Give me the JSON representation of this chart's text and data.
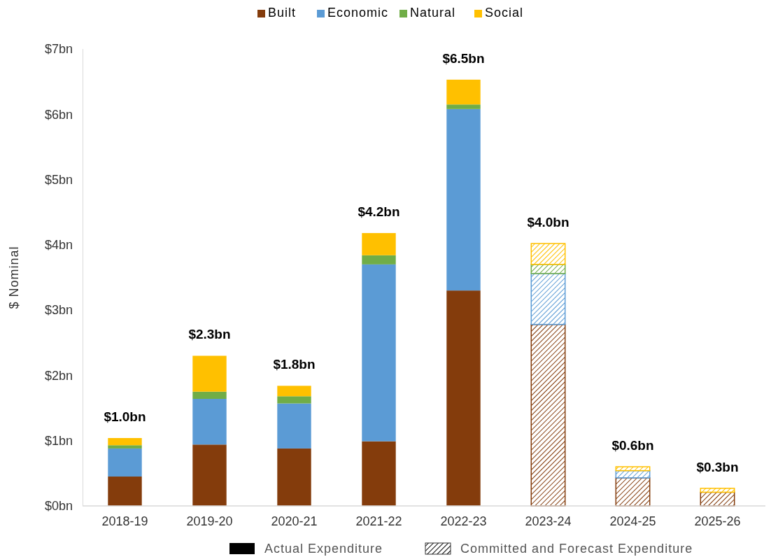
{
  "chart_data": {
    "type": "bar",
    "stacked": true,
    "ylabel": "$ Nominal",
    "legend": "top",
    "categories": [
      "2018-19",
      "2019-20",
      "2020-21",
      "2021-22",
      "2022-23",
      "2023-24",
      "2024-25",
      "2025-26"
    ],
    "ylim": [
      0,
      7
    ],
    "yticks": [
      {
        "value": 0,
        "label": "$0bn"
      },
      {
        "value": 1,
        "label": "$1bn"
      },
      {
        "value": 2,
        "label": "$2bn"
      },
      {
        "value": 3,
        "label": "$3bn"
      },
      {
        "value": 4,
        "label": "$4bn"
      },
      {
        "value": 5,
        "label": "$5bn"
      },
      {
        "value": 6,
        "label": "$6bn"
      },
      {
        "value": 7,
        "label": "$7bn"
      }
    ],
    "series": [
      {
        "type": "bar",
        "name": "Built",
        "color": "#843c0c",
        "values": [
          0.45,
          0.94,
          0.88,
          0.99,
          3.3,
          null,
          null,
          null
        ]
      },
      {
        "type": "bar",
        "name": "Economic",
        "color": "#5b9bd5",
        "values": [
          0.43,
          0.7,
          0.69,
          2.71,
          2.78,
          null,
          null,
          null
        ]
      },
      {
        "type": "bar",
        "name": "Natural",
        "color": "#70ad47",
        "values": [
          0.05,
          0.11,
          0.11,
          0.14,
          0.07,
          null,
          null,
          null
        ]
      },
      {
        "type": "bar",
        "name": "Social",
        "color": "#ffc000",
        "values": [
          0.11,
          0.55,
          0.16,
          0.34,
          0.38,
          null,
          null,
          null
        ]
      },
      {
        "type": "bar",
        "color": "#843c0c",
        "values": [
          null,
          null,
          null,
          null,
          null,
          2.78,
          0.43,
          0.21
        ]
      },
      {
        "type": "bar",
        "color": "#5b9bd5",
        "values": [
          null,
          null,
          null,
          null,
          null,
          0.78,
          0.11,
          null
        ]
      },
      {
        "type": "bar",
        "color": "#70ad47",
        "values": [
          null,
          null,
          null,
          null,
          null,
          0.14,
          null,
          null
        ]
      },
      {
        "type": "bar",
        "color": "#ffc000",
        "values": [
          null,
          null,
          null,
          null,
          null,
          0.32,
          0.06,
          0.06
        ]
      }
    ],
    "totals": [
      "$1.0bn",
      "$2.3bn",
      "$1.8bn",
      "$4.2bn",
      "$6.5bn",
      "$4.0bn",
      "$0.6bn",
      "$0.3bn"
    ],
    "annotations": [
      "Actual Expenditure",
      "Committed and Forecast Expenditure"
    ]
  }
}
